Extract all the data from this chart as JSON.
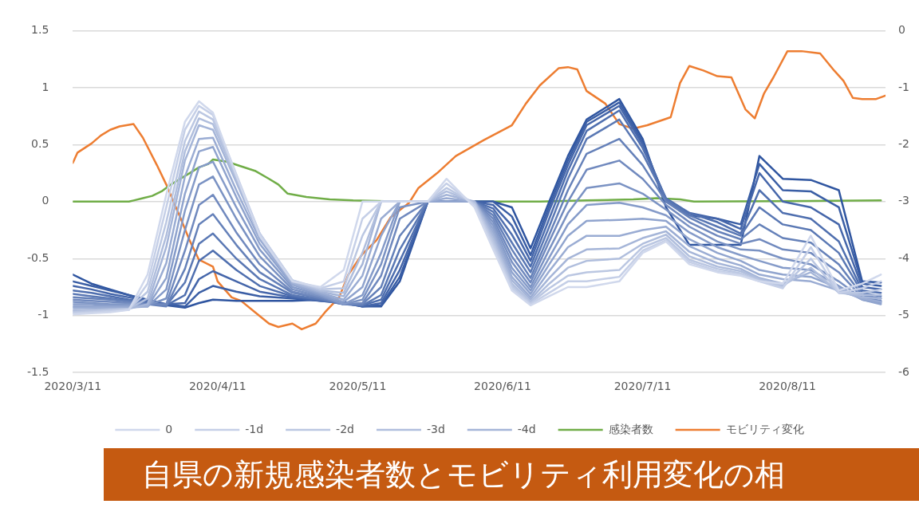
{
  "chart_data": {
    "type": "line",
    "title": "自県の新規感染者数とモビリティ利用変化の相",
    "x": [
      "2020-03-11",
      "2020-03-15",
      "2020-03-19",
      "2020-03-23",
      "2020-03-27",
      "2020-03-31",
      "2020-04-04",
      "2020-04-07",
      "2020-04-10",
      "2020-04-15",
      "2020-04-20",
      "2020-04-27",
      "2020-05-03",
      "2020-05-08",
      "2020-05-12",
      "2020-05-16",
      "2020-05-20",
      "2020-05-26",
      "2020-05-30",
      "2020-06-05",
      "2020-06-09",
      "2020-06-13",
      "2020-06-17",
      "2020-06-21",
      "2020-06-25",
      "2020-06-29",
      "2020-07-06",
      "2020-07-11",
      "2020-07-16",
      "2020-07-21",
      "2020-07-27",
      "2020-08-01",
      "2020-08-05",
      "2020-08-10",
      "2020-08-16",
      "2020-08-22",
      "2020-08-27",
      "2020-08-31"
    ],
    "xlim": [
      "2020-03-11",
      "2020-09-01"
    ],
    "xticks": [
      {
        "value": "2020-03-11",
        "label": "2020/3/11"
      },
      {
        "value": "2020-04-11",
        "label": "2020/4/11"
      },
      {
        "value": "2020-05-11",
        "label": "2020/5/11"
      },
      {
        "value": "2020-06-11",
        "label": "2020/6/11"
      },
      {
        "value": "2020-07-11",
        "label": "2020/7/11"
      },
      {
        "value": "2020-08-11",
        "label": "2020/8/11"
      }
    ],
    "ylim": [
      -1.5,
      1.5
    ],
    "yticks": [
      -1.5,
      -1,
      -0.5,
      0,
      0.5,
      1,
      1.5
    ],
    "y2lim": [
      -6,
      0
    ],
    "y2ticks": [
      -6,
      -5,
      -4,
      -3,
      -2,
      -1,
      0
    ],
    "grid": "y",
    "legend": "bottom",
    "marker": "none",
    "line_style": "solid",
    "series": [
      {
        "name": "0",
        "color": "#d0d8ec",
        "values": [
          -0.99,
          -0.98,
          -0.97,
          -0.95,
          -0.64,
          0.06,
          0.7,
          0.88,
          0.78,
          0.23,
          -0.3,
          -0.7,
          -0.75,
          -0.6,
          0,
          0,
          0,
          0,
          0.2,
          -0.05,
          -0.42,
          -0.78,
          -0.91,
          -0.83,
          -0.75,
          -0.75,
          -0.7,
          -0.45,
          -0.35,
          -0.55,
          -0.62,
          -0.65,
          -0.7,
          -0.72,
          -0.3,
          -0.78,
          -0.72,
          -0.64
        ]
      },
      {
        "name": "-1d",
        "color": "#c5cfe7",
        "values": [
          -0.98,
          -0.97,
          -0.96,
          -0.95,
          -0.72,
          -0.05,
          0.63,
          0.84,
          0.76,
          0.24,
          -0.28,
          -0.69,
          -0.76,
          -0.7,
          -0.15,
          0,
          0,
          0,
          0.16,
          -0.03,
          -0.39,
          -0.76,
          -0.9,
          -0.8,
          -0.7,
          -0.7,
          -0.66,
          -0.43,
          -0.34,
          -0.53,
          -0.61,
          -0.64,
          -0.7,
          -0.76,
          -0.4,
          -0.8,
          -0.76,
          -0.7
        ]
      },
      {
        "name": "-2d",
        "color": "#bbc7e2",
        "values": [
          -0.97,
          -0.96,
          -0.95,
          -0.94,
          -0.79,
          -0.18,
          0.53,
          0.79,
          0.72,
          0.22,
          -0.28,
          -0.69,
          -0.77,
          -0.76,
          -0.3,
          0,
          0,
          0,
          0.12,
          -0.02,
          -0.36,
          -0.74,
          -0.89,
          -0.76,
          -0.65,
          -0.62,
          -0.6,
          -0.4,
          -0.32,
          -0.51,
          -0.59,
          -0.63,
          -0.69,
          -0.75,
          -0.5,
          -0.8,
          -0.8,
          -0.77
        ]
      },
      {
        "name": "-3d",
        "color": "#b0bedd",
        "values": [
          -0.96,
          -0.95,
          -0.95,
          -0.94,
          -0.85,
          -0.3,
          0.44,
          0.73,
          0.68,
          0.2,
          -0.28,
          -0.7,
          -0.78,
          -0.8,
          -0.45,
          0,
          0,
          0,
          0.09,
          -0.01,
          -0.33,
          -0.72,
          -0.88,
          -0.72,
          -0.58,
          -0.52,
          -0.5,
          -0.37,
          -0.29,
          -0.48,
          -0.57,
          -0.61,
          -0.68,
          -0.74,
          -0.58,
          -0.8,
          -0.82,
          -0.82
        ]
      },
      {
        "name": "-4d",
        "color": "#a5b5d8",
        "values": [
          -0.95,
          -0.95,
          -0.94,
          -0.94,
          -0.9,
          -0.4,
          0.36,
          0.67,
          0.63,
          0.17,
          -0.3,
          -0.71,
          -0.79,
          -0.83,
          -0.55,
          0,
          0,
          0,
          0.06,
          0,
          -0.3,
          -0.69,
          -0.86,
          -0.67,
          -0.5,
          -0.42,
          -0.41,
          -0.32,
          -0.26,
          -0.44,
          -0.54,
          -0.59,
          -0.67,
          -0.72,
          -0.62,
          -0.79,
          -0.84,
          -0.85
        ]
      },
      {
        "color": "#9aacd3",
        "values": [
          -0.93,
          -0.93,
          -0.93,
          -0.93,
          -0.92,
          -0.54,
          0.22,
          0.55,
          0.56,
          0.1,
          -0.33,
          -0.72,
          -0.8,
          -0.86,
          -0.65,
          -0.15,
          0,
          0,
          0.03,
          0,
          -0.27,
          -0.66,
          -0.84,
          -0.61,
          -0.4,
          -0.3,
          -0.3,
          -0.25,
          -0.22,
          -0.39,
          -0.5,
          -0.56,
          -0.64,
          -0.68,
          -0.7,
          -0.78,
          -0.85,
          -0.88
        ]
      },
      {
        "color": "#90a4ce",
        "values": [
          -0.92,
          -0.92,
          -0.92,
          -0.92,
          -0.92,
          -0.67,
          0.07,
          0.44,
          0.48,
          0.04,
          -0.37,
          -0.73,
          -0.81,
          -0.88,
          -0.75,
          -0.3,
          0,
          0,
          0,
          0,
          -0.24,
          -0.62,
          -0.81,
          -0.55,
          -0.3,
          -0.17,
          -0.16,
          -0.15,
          -0.17,
          -0.33,
          -0.45,
          -0.52,
          -0.6,
          -0.64,
          -0.66,
          -0.76,
          -0.86,
          -0.9
        ]
      },
      {
        "color": "#859bc9",
        "values": [
          -0.9,
          -0.9,
          -0.91,
          -0.91,
          -0.92,
          -0.77,
          -0.08,
          0.3,
          0.35,
          -0.05,
          -0.42,
          -0.75,
          -0.82,
          -0.9,
          -0.82,
          -0.45,
          0,
          0,
          0,
          0,
          -0.21,
          -0.58,
          -0.78,
          -0.49,
          -0.2,
          -0.03,
          -0.01,
          -0.05,
          -0.12,
          -0.27,
          -0.4,
          -0.47,
          -0.52,
          -0.58,
          -0.6,
          -0.74,
          -0.86,
          -0.89
        ]
      },
      {
        "color": "#7a92c3",
        "values": [
          -0.88,
          -0.89,
          -0.9,
          -0.9,
          -0.91,
          -0.85,
          -0.25,
          0.15,
          0.22,
          -0.15,
          -0.48,
          -0.77,
          -0.83,
          -0.9,
          -0.86,
          -0.55,
          -0.05,
          0,
          0,
          0,
          -0.18,
          -0.53,
          -0.75,
          -0.42,
          -0.1,
          0.12,
          0.16,
          0.07,
          -0.07,
          -0.22,
          -0.35,
          -0.42,
          -0.43,
          -0.5,
          -0.55,
          -0.7,
          -0.85,
          -0.88
        ]
      },
      {
        "color": "#7089be",
        "values": [
          -0.86,
          -0.87,
          -0.88,
          -0.89,
          -0.9,
          -0.9,
          -0.43,
          -0.03,
          0.06,
          -0.27,
          -0.55,
          -0.79,
          -0.84,
          -0.9,
          -0.89,
          -0.65,
          -0.15,
          0,
          0,
          0,
          -0.15,
          -0.48,
          -0.71,
          -0.35,
          0,
          0.28,
          0.36,
          0.2,
          -0.03,
          -0.18,
          -0.3,
          -0.37,
          -0.33,
          -0.42,
          -0.45,
          -0.62,
          -0.84,
          -0.87
        ]
      },
      {
        "color": "#6581b9",
        "values": [
          -0.84,
          -0.85,
          -0.86,
          -0.88,
          -0.9,
          -0.92,
          -0.59,
          -0.2,
          -0.11,
          -0.38,
          -0.62,
          -0.8,
          -0.85,
          -0.9,
          -0.9,
          -0.75,
          -0.3,
          0,
          0,
          0,
          -0.12,
          -0.42,
          -0.67,
          -0.29,
          0.1,
          0.42,
          0.55,
          0.32,
          0,
          -0.14,
          -0.26,
          -0.33,
          -0.2,
          -0.32,
          -0.36,
          -0.55,
          -0.82,
          -0.85
        ]
      },
      {
        "color": "#5a78b4",
        "values": [
          -0.81,
          -0.83,
          -0.85,
          -0.87,
          -0.89,
          -0.91,
          -0.71,
          -0.37,
          -0.28,
          -0.5,
          -0.68,
          -0.82,
          -0.86,
          -0.9,
          -0.91,
          -0.82,
          -0.42,
          0,
          0,
          0,
          -0.09,
          -0.36,
          -0.62,
          -0.22,
          0.2,
          0.55,
          0.72,
          0.42,
          0.02,
          -0.12,
          -0.22,
          -0.3,
          -0.05,
          -0.2,
          -0.25,
          -0.45,
          -0.8,
          -0.83
        ]
      },
      {
        "color": "#4f6faf",
        "values": [
          -0.78,
          -0.8,
          -0.83,
          -0.86,
          -0.88,
          -0.91,
          -0.82,
          -0.52,
          -0.43,
          -0.6,
          -0.74,
          -0.83,
          -0.86,
          -0.9,
          -0.91,
          -0.86,
          -0.52,
          0,
          0,
          0,
          -0.06,
          -0.29,
          -0.57,
          -0.15,
          0.27,
          0.62,
          0.8,
          0.47,
          0.03,
          -0.1,
          -0.18,
          -0.28,
          0.1,
          -0.1,
          -0.15,
          -0.35,
          -0.78,
          -0.8
        ]
      },
      {
        "color": "#4566aa",
        "values": [
          -0.74,
          -0.77,
          -0.81,
          -0.84,
          -0.87,
          -0.9,
          -0.89,
          -0.68,
          -0.61,
          -0.7,
          -0.79,
          -0.84,
          -0.87,
          -0.89,
          -0.92,
          -0.89,
          -0.6,
          0,
          0,
          0,
          -0.03,
          -0.21,
          -0.52,
          -0.08,
          0.32,
          0.67,
          0.84,
          0.5,
          0.02,
          -0.1,
          -0.15,
          -0.24,
          0.25,
          0,
          -0.05,
          -0.2,
          -0.75,
          -0.77
        ]
      },
      {
        "color": "#3a5ea5",
        "values": [
          -0.7,
          -0.74,
          -0.78,
          -0.82,
          -0.86,
          -0.9,
          -0.92,
          -0.8,
          -0.74,
          -0.79,
          -0.83,
          -0.85,
          -0.87,
          -0.89,
          -0.92,
          -0.91,
          -0.66,
          0,
          0,
          0,
          0,
          -0.13,
          -0.47,
          -0.04,
          0.36,
          0.7,
          0.87,
          0.52,
          0,
          -0.12,
          -0.15,
          -0.2,
          0.33,
          0.1,
          0.09,
          -0.05,
          -0.72,
          -0.74
        ]
      },
      {
        "color": "#2f55a0",
        "values": [
          -0.64,
          -0.72,
          -0.77,
          -0.82,
          -0.87,
          -0.91,
          -0.93,
          -0.89,
          -0.86,
          -0.87,
          -0.87,
          -0.87,
          -0.86,
          -0.88,
          -0.92,
          -0.92,
          -0.7,
          0,
          0,
          0,
          0,
          -0.05,
          -0.41,
          0,
          0.4,
          0.72,
          0.9,
          0.55,
          -0.05,
          -0.38,
          -0.38,
          -0.38,
          0.4,
          0.2,
          0.19,
          0.1,
          -0.7,
          -0.71
        ]
      },
      {
        "name": "感染者数",
        "color": "#70ad47",
        "x": [
          "2020-03-11",
          "2020-03-23",
          "2020-03-24",
          "2020-03-26",
          "2020-03-28",
          "2020-03-30",
          "2020-04-01",
          "2020-04-03",
          "2020-04-05",
          "2020-04-07",
          "2020-04-09",
          "2020-04-10",
          "2020-04-13",
          "2020-04-16",
          "2020-04-19",
          "2020-04-22",
          "2020-04-24",
          "2020-04-26",
          "2020-04-30",
          "2020-05-05",
          "2020-05-10",
          "2020-05-20",
          "2020-06-19",
          "2020-06-29",
          "2020-07-09",
          "2020-07-14",
          "2020-07-19",
          "2020-07-22",
          "2020-08-31"
        ],
        "values": [
          0,
          0,
          0.01,
          0.03,
          0.05,
          0.09,
          0.15,
          0.2,
          0.25,
          0.3,
          0.33,
          0.37,
          0.35,
          0.31,
          0.27,
          0.2,
          0.15,
          0.07,
          0.04,
          0.02,
          0.01,
          0,
          0,
          0.01,
          0.02,
          0.03,
          0.02,
          0,
          0.01
        ]
      },
      {
        "name": "モビリティ変化",
        "color": "#ed7d31",
        "axis": "y2",
        "x": [
          "2020-03-11",
          "2020-03-12",
          "2020-03-15",
          "2020-03-17",
          "2020-03-19",
          "2020-03-21",
          "2020-03-24",
          "2020-03-26",
          "2020-03-29",
          "2020-03-31",
          "2020-04-03",
          "2020-04-05",
          "2020-04-07",
          "2020-04-10",
          "2020-04-11",
          "2020-04-14",
          "2020-04-16",
          "2020-04-19",
          "2020-04-22",
          "2020-04-24",
          "2020-04-27",
          "2020-04-29",
          "2020-05-02",
          "2020-05-04",
          "2020-05-07",
          "2020-05-09",
          "2020-05-12",
          "2020-05-15",
          "2020-05-18",
          "2020-05-22",
          "2020-05-24",
          "2020-05-28",
          "2020-06-01",
          "2020-06-07",
          "2020-06-13",
          "2020-06-16",
          "2020-06-19",
          "2020-06-23",
          "2020-06-25",
          "2020-06-27",
          "2020-06-29",
          "2020-07-03",
          "2020-07-06",
          "2020-07-09",
          "2020-07-12",
          "2020-07-17",
          "2020-07-19",
          "2020-07-21",
          "2020-07-24",
          "2020-07-27",
          "2020-07-30",
          "2020-08-02",
          "2020-08-04",
          "2020-08-06",
          "2020-08-08",
          "2020-08-11",
          "2020-08-14",
          "2020-08-18",
          "2020-08-21",
          "2020-08-23",
          "2020-08-25",
          "2020-08-27",
          "2020-08-30",
          "2020-09-01"
        ],
        "values": [
          -2.32,
          -2.14,
          -1.98,
          -1.84,
          -1.74,
          -1.68,
          -1.64,
          -1.88,
          -2.36,
          -2.7,
          -3.28,
          -3.68,
          -4.02,
          -4.14,
          -4.4,
          -4.68,
          -4.74,
          -4.94,
          -5.14,
          -5.2,
          -5.14,
          -5.24,
          -5.14,
          -4.94,
          -4.68,
          -4.28,
          -3.92,
          -3.68,
          -3.28,
          -3.02,
          -2.76,
          -2.5,
          -2.2,
          -1.92,
          -1.66,
          -1.28,
          -0.96,
          -0.66,
          -0.64,
          -0.68,
          -1.06,
          -1.28,
          -1.64,
          -1.72,
          -1.66,
          -1.52,
          -0.92,
          -0.62,
          -0.7,
          -0.8,
          -0.82,
          -1.38,
          -1.54,
          -1.1,
          -0.82,
          -0.36,
          -0.36,
          -0.4,
          -0.7,
          -0.88,
          -1.18,
          -1.2,
          -1.2,
          -1.14
        ]
      }
    ]
  }
}
